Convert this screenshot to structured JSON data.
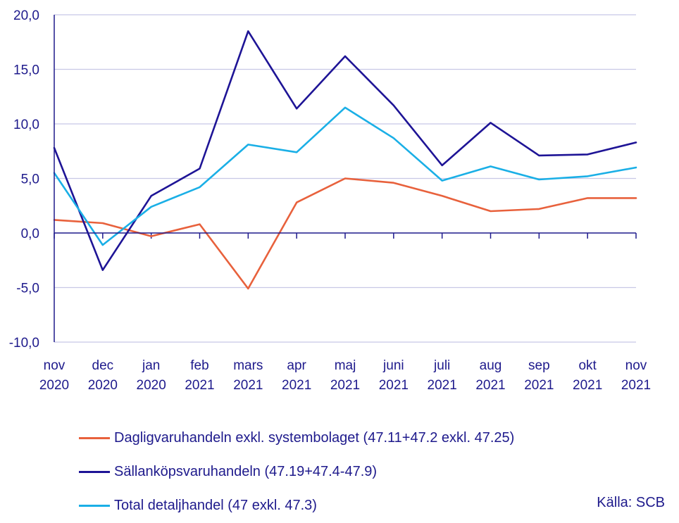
{
  "chart_data": {
    "type": "line",
    "categories": [
      [
        "nov",
        "2020"
      ],
      [
        "dec",
        "2020"
      ],
      [
        "jan",
        "2020"
      ],
      [
        "feb",
        "2021"
      ],
      [
        "mars",
        "2021"
      ],
      [
        "apr",
        "2021"
      ],
      [
        "maj",
        "2021"
      ],
      [
        "juni",
        "2021"
      ],
      [
        "juli",
        "2021"
      ],
      [
        "aug",
        "2021"
      ],
      [
        "sep",
        "2021"
      ],
      [
        "okt",
        "2021"
      ],
      [
        "nov",
        "2021"
      ]
    ],
    "yticks": [
      "20,0",
      "15,0",
      "10,0",
      "5,0",
      "0,0",
      "-5,0",
      "-10,0"
    ],
    "ylim": [
      -10,
      20
    ],
    "grid": true,
    "legend_position": "bottom",
    "series": [
      {
        "name": "Dagligvaruhandeln exkl. systembolaget (47.11+47.2 exkl. 47.25)",
        "color": "#e8613c",
        "values": [
          1.2,
          0.9,
          -0.3,
          0.8,
          -5.1,
          2.8,
          5.0,
          4.6,
          3.4,
          2.0,
          2.2,
          3.2,
          3.2
        ]
      },
      {
        "name": "Sällanköpsvaruhandeln (47.19+47.4-47.9)",
        "color": "#1e1496",
        "values": [
          7.8,
          -3.4,
          3.4,
          5.9,
          18.5,
          11.4,
          16.2,
          11.7,
          6.2,
          10.1,
          7.1,
          7.2,
          8.3
        ]
      },
      {
        "name": "Total detaljhandel (47 exkl. 47.3)",
        "color": "#1aafe6",
        "values": [
          5.5,
          -1.1,
          2.4,
          4.2,
          8.1,
          7.4,
          11.5,
          8.7,
          4.8,
          6.1,
          4.9,
          5.2,
          6.0
        ]
      }
    ],
    "source": "Källa: SCB"
  }
}
